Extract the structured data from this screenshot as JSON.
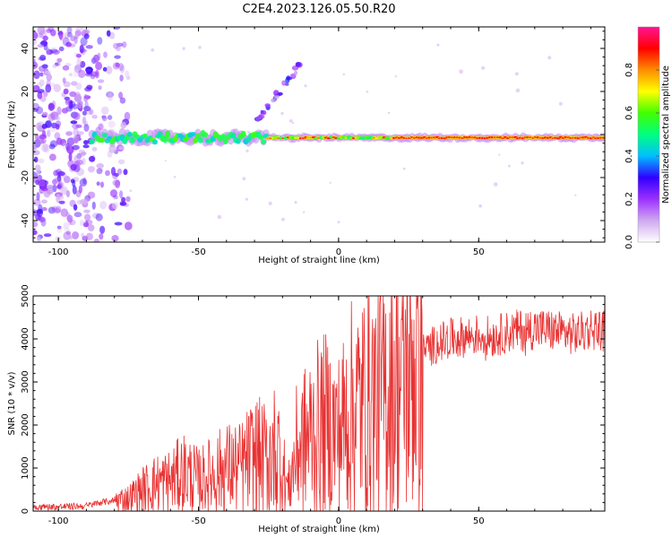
{
  "title": "C2E4.2023.126.05.50.R20",
  "chart_data": [
    {
      "type": "heatmap",
      "xlabel": "Height of straight line (km)",
      "ylabel": "Frequency (Hz)",
      "xlim": [
        -109,
        95
      ],
      "ylim": [
        -50,
        50
      ],
      "xticks": [
        -100,
        -50,
        0,
        50
      ],
      "yticks": [
        -40,
        -20,
        0,
        20,
        40
      ],
      "grid": false,
      "colorbar": {
        "label": "Normalized spectral amplitude",
        "range": [
          0,
          1
        ],
        "ticks": [
          "0.0",
          "0.2",
          "0.4",
          "0.6",
          "0.8"
        ],
        "colors": [
          "#ffffff",
          "#cfa8f0",
          "#9b30ff",
          "#2f00ff",
          "#00bfff",
          "#00ff80",
          "#40ff00",
          "#ffff00",
          "#ff8c00",
          "#ff0000",
          "#ff1493"
        ]
      },
      "features": [
        {
          "name": "main frequency trace",
          "x_range": [
            -88,
            95
          ],
          "frequency_hz": -1.5,
          "amplitude_range": [
            0.3,
            0.95
          ]
        },
        {
          "name": "ascending echo",
          "x_range": [
            -30,
            -14
          ],
          "frequency_hz_range": [
            5,
            32
          ],
          "amplitude_range": [
            0.1,
            0.35
          ]
        },
        {
          "name": "low-altitude noise",
          "x_range": [
            -109,
            -75
          ],
          "frequency_hz_range": [
            -50,
            50
          ],
          "amplitude_range": [
            0.05,
            0.3
          ]
        }
      ]
    },
    {
      "type": "line",
      "xlabel": "Height of straight line (km)",
      "ylabel": "SNR (10 * v/v)",
      "xlim": [
        -109,
        95
      ],
      "ylim": [
        0,
        5000
      ],
      "xticks": [
        -100,
        -50,
        0,
        50
      ],
      "yticks": [
        0,
        1000,
        2000,
        3000,
        4000,
        5000
      ],
      "grid": false,
      "color": "#e83232",
      "series": [
        {
          "x": [
            -109,
            -100,
            -90,
            -85,
            -80,
            -75,
            -70,
            -65,
            -60,
            -55,
            -50,
            -45,
            -40,
            -35,
            -30,
            -25,
            -22,
            -18,
            -15,
            -10,
            -5,
            0,
            5,
            10,
            15,
            20,
            25,
            30,
            35,
            40,
            45,
            50,
            55,
            60,
            65,
            70,
            75,
            80,
            85,
            90,
            95
          ],
          "y": [
            100,
            100,
            120,
            200,
            250,
            300,
            500,
            650,
            700,
            900,
            700,
            850,
            1000,
            1000,
            1300,
            1200,
            1500,
            500,
            1400,
            1800,
            2000,
            1800,
            2400,
            2500,
            2700,
            3000,
            3300,
            3700,
            3900,
            4000,
            4050,
            4100,
            4050,
            4150,
            4200,
            4250,
            4200,
            4150,
            4100,
            4250,
            4200
          ]
        }
      ]
    }
  ]
}
